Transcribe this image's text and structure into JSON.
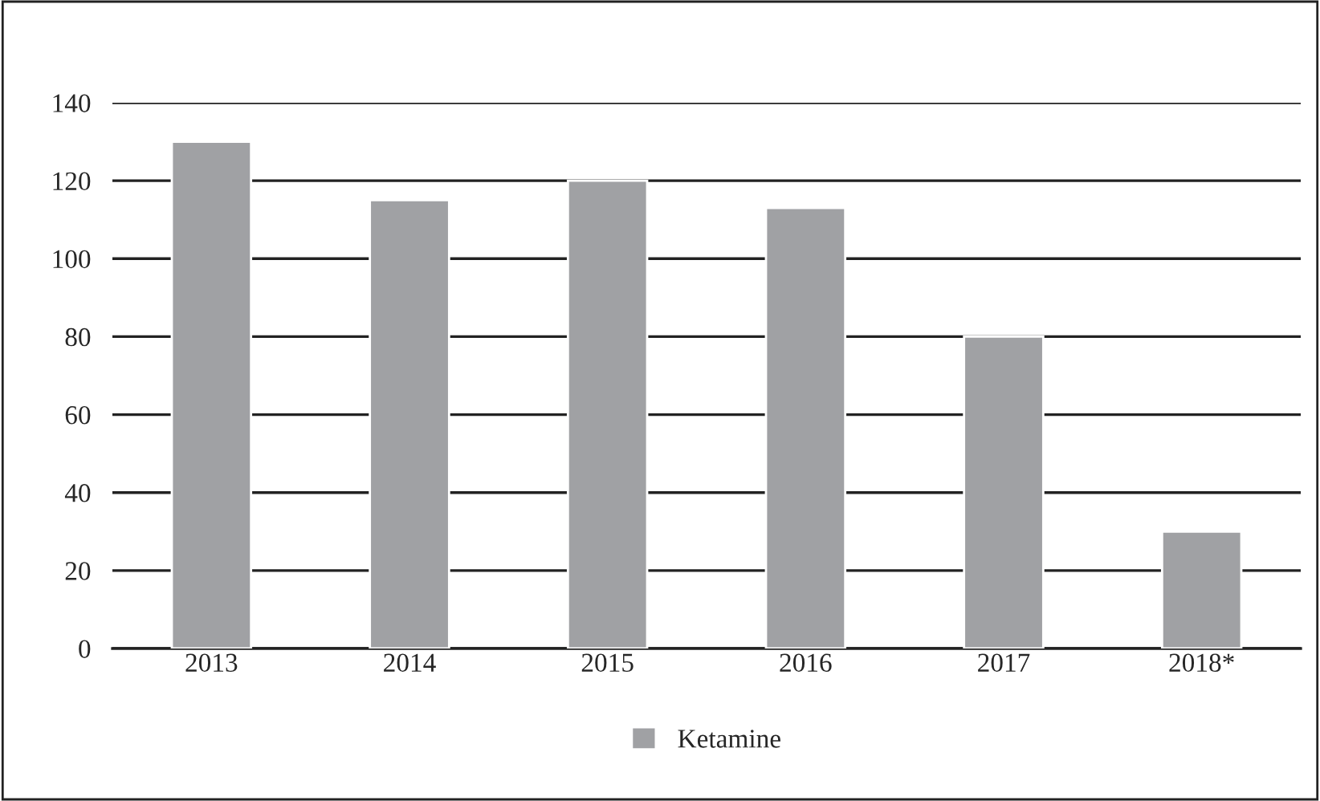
{
  "chart_data": {
    "type": "bar",
    "categories": [
      "2013",
      "2014",
      "2015",
      "2016",
      "2017",
      "2018*"
    ],
    "series": [
      {
        "name": "Ketamine",
        "color": "#a0a1a4",
        "values": [
          130,
          115,
          120,
          113,
          80,
          30
        ]
      }
    ],
    "ylim": [
      0,
      140
    ],
    "yticks": [
      0,
      20,
      40,
      60,
      80,
      100,
      120,
      140
    ],
    "grid": "y",
    "legend": "bottom"
  }
}
